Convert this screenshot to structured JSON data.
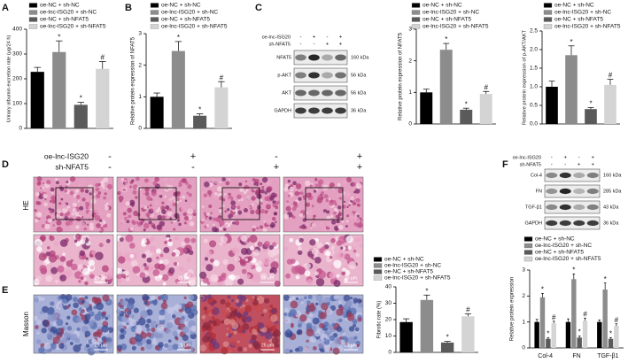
{
  "panels": {
    "letters": [
      "A",
      "B",
      "C",
      "D",
      "E",
      "F"
    ]
  },
  "chart_data": [
    {
      "type": "bar",
      "y_label": "Urinary albumin excretion rate (μg/24 h)",
      "categories": [
        "oe-NC + sh-NC",
        "oe-lnc-ISG20 + sh-NC",
        "oe-NC + sh-NFAT5",
        "oe-lnc-ISG20 + sh-NFAT5"
      ],
      "colors": [
        "#000000",
        "#8c8c8c",
        "#5a5a5a",
        "#d4d4d4"
      ],
      "values": [
        228,
        308,
        95,
        240
      ],
      "errors": [
        18,
        45,
        10,
        30
      ],
      "significance": [
        null,
        "*",
        "*",
        "#"
      ],
      "ylim": [
        0,
        400
      ],
      "yticks": [
        0,
        100,
        200,
        300,
        400
      ]
    },
    {
      "type": "bar",
      "y_label": "Relative protein expression of NFAT5",
      "categories": [
        "oe-NC + sh-NC",
        "oe-lnc-ISG20 + sh-NC",
        "oe-NC + sh-NFAT5",
        "oe-lnc-ISG20 + sh-NFAT5"
      ],
      "colors": [
        "#000000",
        "#8c8c8c",
        "#5a5a5a",
        "#d4d4d4"
      ],
      "values": [
        1.0,
        2.45,
        0.4,
        1.3
      ],
      "errors": [
        0.12,
        0.3,
        0.06,
        0.18
      ],
      "significance": [
        null,
        "*",
        "*",
        "#"
      ],
      "ylim": [
        0,
        3
      ],
      "yticks": [
        0,
        1,
        2,
        3
      ]
    },
    {
      "type": "bar",
      "y_label": "Relative protein expression of NFAT5",
      "categories": [
        "oe-NC + sh-NC",
        "oe-lnc-ISG20 + sh-NC",
        "oe-NC + sh-NFAT5",
        "oe-lnc-ISG20 + sh-NFAT5"
      ],
      "colors": [
        "#000000",
        "#8c8c8c",
        "#5a5a5a",
        "#d4d4d4"
      ],
      "values": [
        1.0,
        2.35,
        0.45,
        0.95
      ],
      "errors": [
        0.1,
        0.2,
        0.05,
        0.08
      ],
      "significance": [
        null,
        "*",
        "*",
        "#"
      ],
      "ylim": [
        0,
        3
      ],
      "yticks": [
        0,
        1,
        2,
        3
      ]
    },
    {
      "type": "bar",
      "y_label": "Relative protein expression of p-AKT/AKT",
      "categories": [
        "oe-NC + sh-NC",
        "oe-lnc-ISG20 + sh-NC",
        "oe-NC + sh-NFAT5",
        "oe-lnc-ISG20 + sh-NFAT5"
      ],
      "colors": [
        "#000000",
        "#8c8c8c",
        "#5a5a5a",
        "#d4d4d4"
      ],
      "values": [
        1.0,
        1.85,
        0.4,
        1.05
      ],
      "errors": [
        0.15,
        0.25,
        0.04,
        0.15
      ],
      "significance": [
        null,
        "*",
        "*",
        "#"
      ],
      "ylim": [
        0,
        2.5
      ],
      "yticks": [
        {
          "value": 0,
          "label": "0.0"
        },
        {
          "value": 0.5,
          "label": "0.5"
        },
        {
          "value": 1,
          "label": "1.0"
        },
        {
          "value": 1.5,
          "label": "1.5"
        },
        {
          "value": 2,
          "label": "2.0"
        },
        {
          "value": 2.5,
          "label": "2.5"
        }
      ]
    },
    {
      "type": "bar",
      "y_label": "Fibrotic rate (%)",
      "categories": [
        "oe-NC + sh-NC",
        "oe-lnc-ISG20 + sh-NC",
        "oe-NC + sh-NFAT5",
        "oe-lnc-ISG20 + sh-NFAT5"
      ],
      "colors": [
        "#000000",
        "#8c8c8c",
        "#5a5a5a",
        "#d4d4d4"
      ],
      "values": [
        18.5,
        32,
        6,
        22
      ],
      "errors": [
        2,
        3,
        0.7,
        1.5
      ],
      "significance": [
        null,
        "*",
        "*",
        "#"
      ],
      "ylim": [
        0,
        40
      ],
      "yticks": [
        0,
        10,
        20,
        30,
        40
      ]
    },
    {
      "type": "bar",
      "y_label": "Relative protein expression",
      "categories": [
        "Col-4",
        "FN",
        "TGF-β1"
      ],
      "series": [
        {
          "name": "oe-NC + sh-NC",
          "color": "#000000",
          "values": [
            1.0,
            1.0,
            1.0
          ],
          "errors": [
            0.1,
            0.12,
            0.08
          ],
          "significance": [
            null,
            null,
            null
          ]
        },
        {
          "name": "oe-lnc-ISG20 + sh-NC",
          "color": "#8c8c8c",
          "values": [
            1.95,
            2.65,
            2.25
          ],
          "errors": [
            0.15,
            0.2,
            0.25
          ],
          "significance": [
            "*",
            "*",
            "*"
          ]
        },
        {
          "name": "oe-NC + sh-NFAT5",
          "color": "#5a5a5a",
          "values": [
            0.35,
            0.4,
            0.35
          ],
          "errors": [
            0.05,
            0.06,
            0.05
          ],
          "significance": [
            "*",
            "*",
            "*"
          ]
        },
        {
          "name": "oe-lnc-ISG20 + sh-NFAT5",
          "color": "#d4d4d4",
          "values": [
            0.95,
            1.05,
            0.85
          ],
          "errors": [
            0.08,
            0.1,
            0.08
          ],
          "significance": [
            "#",
            "#",
            "#"
          ]
        }
      ],
      "ylim": [
        0,
        3
      ],
      "yticks": [
        0,
        1,
        2,
        3
      ]
    }
  ],
  "blots": [
    {
      "row_labels": [
        "NFAT5",
        "p-AKT",
        "AKT",
        "GAPDH"
      ],
      "kda": [
        "160 kDa",
        "56 kDa",
        "56 kDa",
        "36 kDa"
      ],
      "treatments": [
        {
          "name": "oe-lnc-ISG20",
          "signs": [
            "-",
            "+",
            "-",
            "+"
          ]
        },
        {
          "name": "sh-NFAT5",
          "signs": [
            "-",
            "-",
            "+",
            "+"
          ]
        }
      ]
    },
    {
      "row_labels": [
        "Col-4",
        "FN",
        "TGF-β1",
        "GAPDH"
      ],
      "kda": [
        "160 kDa",
        "285 kDa",
        "43 kDa",
        "36 kDa"
      ],
      "treatments": [
        {
          "name": "oe-lnc-ISG20",
          "signs": [
            "-",
            "+",
            "-",
            "+"
          ]
        },
        {
          "name": "sh-NFAT5",
          "signs": [
            "-",
            "-",
            "+",
            "+"
          ]
        }
      ]
    }
  ],
  "histology": {
    "treatments": [
      {
        "name": "oe-lnc-ISG20",
        "signs": [
          "-",
          "+",
          "-",
          "+"
        ]
      },
      {
        "name": "sh-NFAT5",
        "signs": [
          "-",
          "-",
          "+",
          "+"
        ]
      }
    ],
    "stains": [
      "HE",
      "Masson"
    ],
    "scale_bar": "25 μm"
  }
}
